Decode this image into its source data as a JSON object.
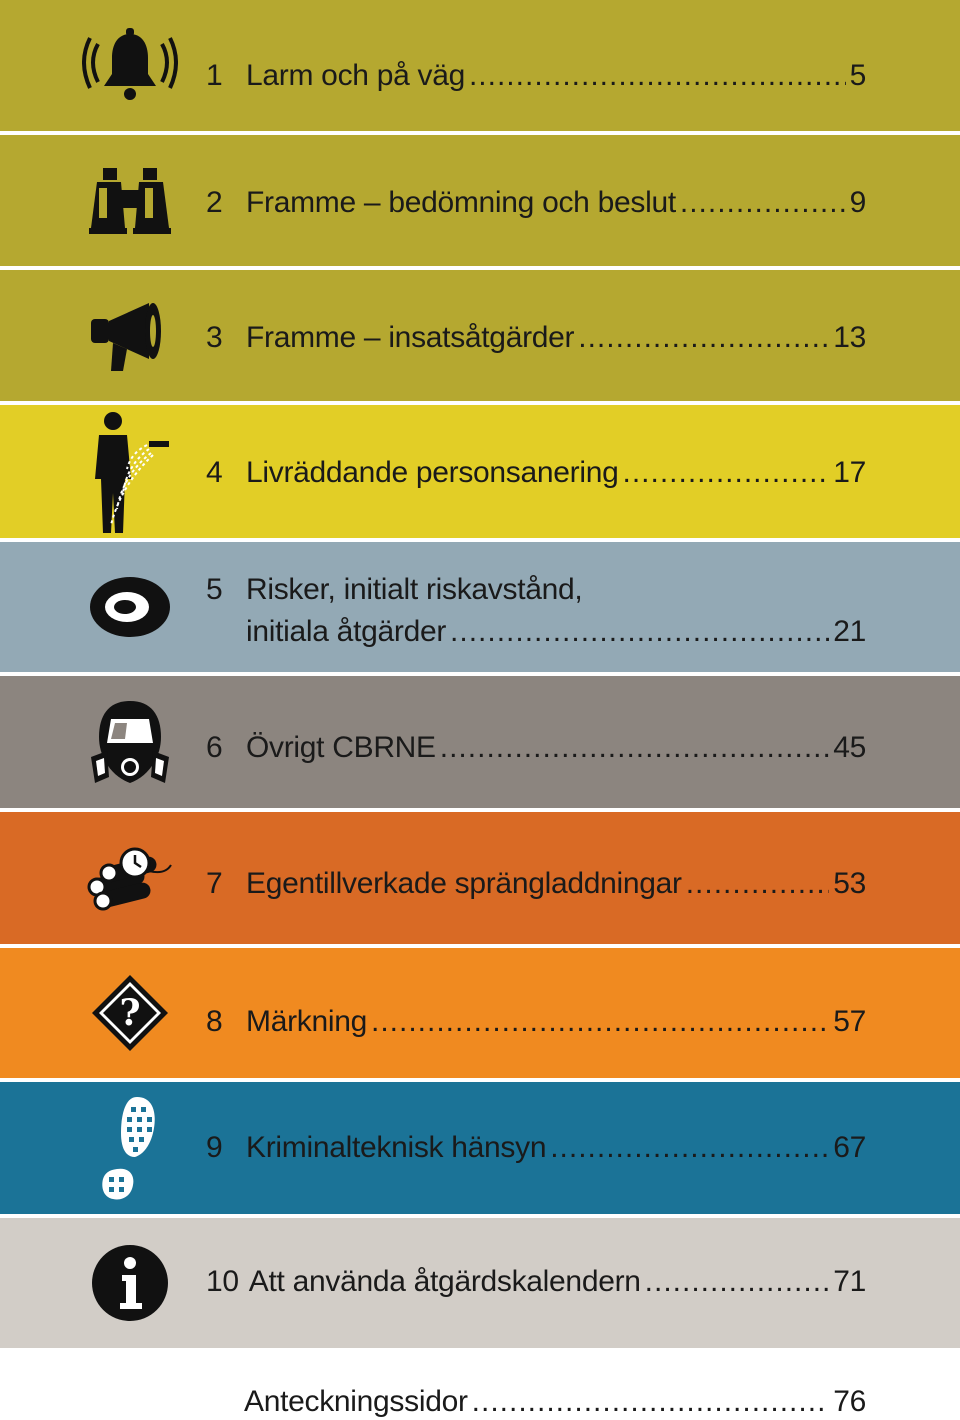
{
  "colors": {
    "chapter_1": "#b5a830",
    "chapter_2": "#b5a830",
    "chapter_3": "#b5a830",
    "chapter_4": "#e2ce26",
    "chapter_5": "#93a9b5",
    "chapter_6": "#8c857f",
    "chapter_7": "#d96a25",
    "chapter_8": "#f08a20",
    "chapter_9": "#1b7397",
    "chapter_10": "#d2cdc7",
    "text": "#1a1a1a"
  },
  "chapters": [
    {
      "number": "1",
      "title": "Larm och på väg",
      "page": "5",
      "icon": "alarm-bell-icon"
    },
    {
      "number": "2",
      "title": "Framme – bedömning och beslut",
      "page": "9",
      "icon": "binoculars-icon"
    },
    {
      "number": "3",
      "title": "Framme – insatsåtgärder",
      "page": "13",
      "icon": "megaphone-icon"
    },
    {
      "number": "4",
      "title": "Livräddande personsanering",
      "page": "17",
      "icon": "decontamination-shower-icon"
    },
    {
      "number": "5",
      "title_line1": "Risker, initialt riskavstånd,",
      "title_line2": "initiala åtgärder",
      "page": "21",
      "icon": "risk-zone-icon"
    },
    {
      "number": "6",
      "title": "Övrigt CBRNE",
      "page": "45",
      "icon": "gas-mask-icon"
    },
    {
      "number": "7",
      "title": "Egentillverkade sprängladdningar",
      "page": "53",
      "icon": "time-bomb-icon"
    },
    {
      "number": "8",
      "title": "Märkning",
      "page": "57",
      "icon": "hazard-diamond-question-icon"
    },
    {
      "number": "9",
      "title": "Kriminalteknisk hänsyn",
      "page": "67",
      "icon": "footprint-icon"
    },
    {
      "number": "10",
      "title": "Att använda åtgärdskalendern",
      "page": "71",
      "icon": "info-icon"
    }
  ],
  "notes": {
    "title": "Anteckningssidor",
    "page": "76"
  }
}
